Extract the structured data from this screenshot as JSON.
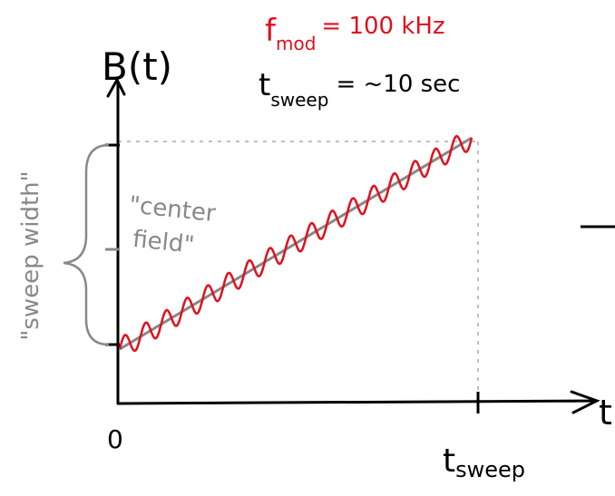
{
  "axes": {
    "y_label": "B(t)",
    "x_label": "t",
    "origin": "0",
    "x_end_label": {
      "main": "t",
      "sub": "sweep"
    }
  },
  "annotations": {
    "modulation": {
      "main": "f",
      "sub": "mod",
      "rest": "= 100 kHz"
    },
    "sweep_time": {
      "main": "t",
      "sub": "sweep",
      "rest": "= ~10 sec"
    },
    "center_field": [
      "\"center",
      "field\""
    ],
    "sweep_width": "\"sweep width\""
  }
}
